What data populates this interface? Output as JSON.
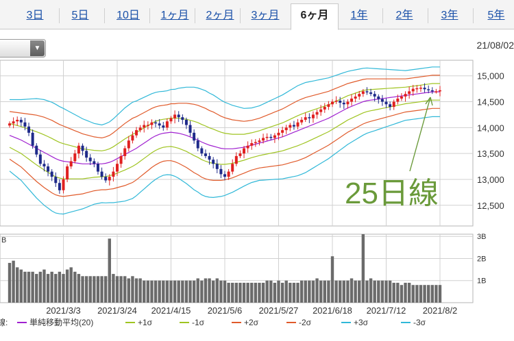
{
  "tabs": [
    {
      "label": "3日",
      "active": false
    },
    {
      "label": "5日",
      "active": false
    },
    {
      "label": "10日",
      "active": false
    },
    {
      "label": "1ヶ月",
      "active": false
    },
    {
      "label": "2ヶ月",
      "active": false
    },
    {
      "label": "3ヶ月",
      "active": false
    },
    {
      "label": "6ヶ月",
      "active": true
    },
    {
      "label": "1年",
      "active": false
    },
    {
      "label": "2年",
      "active": false
    },
    {
      "label": "3年",
      "active": false
    },
    {
      "label": "5年",
      "active": false
    }
  ],
  "header": {
    "date": "21/08/02"
  },
  "annotation": {
    "text": "25日線",
    "color": "#6a9a3a"
  },
  "chart_data": {
    "type": "candlestick",
    "price_axis": {
      "ticks": [
        15000,
        14500,
        14000,
        13500,
        13000,
        12500
      ],
      "tick_labels": [
        "15,000",
        "14,500",
        "14,000",
        "13,500",
        "13,000",
        "12,500"
      ],
      "range": [
        12100,
        15300
      ]
    },
    "volume_axis": {
      "ticks": [
        3,
        2,
        1
      ],
      "tick_labels": [
        "3B",
        "2B",
        "1B"
      ],
      "range": [
        0,
        3.1
      ],
      "unit_label": "B"
    },
    "x_tick_labels": [
      "2021/3/3",
      "2021/3/24",
      "2021/4/15",
      "2021/5/6",
      "2021/5/27",
      "2021/6/18",
      "2021/7/12",
      "2021/8/2"
    ],
    "x_tick_index": [
      14,
      28,
      42,
      56,
      70,
      84,
      98,
      112
    ],
    "colors": {
      "up": "#e02020",
      "down": "#1e2a8a",
      "ma": "#a020d0",
      "s1": "#9fc420",
      "s2": "#e05a2a",
      "s3": "#30b8d8",
      "grid": "#d0d0d0"
    },
    "close": [
      14080,
      14120,
      14150,
      14100,
      14020,
      13900,
      13650,
      13480,
      13300,
      13250,
      13150,
      13050,
      12930,
      12790,
      13000,
      13250,
      13350,
      13500,
      13650,
      13550,
      13420,
      13350,
      13300,
      13150,
      13050,
      12980,
      13050,
      13150,
      13300,
      13450,
      13600,
      13750,
      13850,
      13950,
      14000,
      14050,
      14050,
      14100,
      14080,
      14040,
      14000,
      14120,
      14180,
      14250,
      14200,
      14150,
      14050,
      13900,
      13750,
      13600,
      13500,
      13450,
      13380,
      13300,
      13200,
      13100,
      13050,
      13150,
      13300,
      13450,
      13500,
      13600,
      13650,
      13700,
      13720,
      13750,
      13800,
      13820,
      13800,
      13850,
      13900,
      13950,
      14000,
      14050,
      14020,
      14100,
      14150,
      14200,
      14180,
      14250,
      14300,
      14350,
      14400,
      14450,
      14500,
      14520,
      14480,
      14450,
      14500,
      14560,
      14600,
      14650,
      14700,
      14680,
      14650,
      14600,
      14550,
      14500,
      14450,
      14400,
      14500,
      14560,
      14600,
      14650,
      14700,
      14750,
      14760,
      14770,
      14740,
      14720,
      14700,
      14700,
      14720
    ],
    "ma25": [
      13850,
      13820,
      13790,
      13760,
      13720,
      13680,
      13640,
      13600,
      13560,
      13520,
      13480,
      13440,
      13400,
      13370,
      13350,
      13340,
      13330,
      13320,
      13310,
      13300,
      13300,
      13300,
      13300,
      13300,
      13300,
      13310,
      13330,
      13360,
      13400,
      13440,
      13480,
      13520,
      13560,
      13600,
      13650,
      13700,
      13750,
      13800,
      13840,
      13870,
      13890,
      13900,
      13910,
      13900,
      13890,
      13870,
      13850,
      13820,
      13790,
      13760,
      13720,
      13690,
      13660,
      13640,
      13620,
      13600,
      13590,
      13590,
      13590,
      13600,
      13610,
      13620,
      13640,
      13660,
      13680,
      13700,
      13720,
      13740,
      13760,
      13780,
      13800,
      13820,
      13850,
      13880,
      13910,
      13940,
      13970,
      14000,
      14030,
      14060,
      14090,
      14120,
      14150,
      14180,
      14220,
      14260,
      14300,
      14340,
      14380,
      14410,
      14440,
      14470,
      14500,
      14520,
      14530,
      14540,
      14550,
      14560,
      14570,
      14580,
      14590,
      14600,
      14610,
      14620,
      14630,
      14640,
      14650,
      14660,
      14670,
      14680,
      14690,
      14690,
      14690
    ],
    "sigma": [
      230,
      240,
      250,
      260,
      275,
      290,
      305,
      320,
      330,
      340,
      345,
      350,
      350,
      345,
      340,
      330,
      320,
      310,
      300,
      290,
      280,
      270,
      260,
      255,
      250,
      255,
      260,
      270,
      280,
      290,
      300,
      305,
      310,
      305,
      300,
      295,
      290,
      285,
      280,
      275,
      270,
      270,
      275,
      280,
      290,
      300,
      310,
      320,
      330,
      335,
      340,
      340,
      335,
      330,
      320,
      310,
      300,
      290,
      280,
      270,
      260,
      250,
      245,
      240,
      240,
      240,
      245,
      250,
      255,
      260,
      265,
      270,
      275,
      280,
      285,
      290,
      290,
      290,
      285,
      280,
      275,
      270,
      265,
      260,
      255,
      250,
      245,
      240,
      235,
      230,
      225,
      220,
      215,
      210,
      205,
      200,
      195,
      190,
      185,
      180,
      175,
      170,
      165,
      160,
      160,
      160,
      160,
      160,
      160,
      160,
      160,
      160,
      160
    ],
    "volume": [
      1.8,
      1.9,
      1.6,
      1.5,
      1.4,
      1.4,
      1.4,
      1.3,
      1.4,
      1.5,
      1.3,
      1.4,
      1.3,
      1.4,
      1.3,
      1.5,
      1.6,
      1.4,
      1.3,
      1.2,
      1.2,
      1.2,
      1.2,
      1.2,
      1.2,
      1.2,
      2.9,
      1.3,
      1.2,
      1.2,
      1.2,
      1.1,
      1.2,
      1.1,
      1.1,
      1.0,
      1.0,
      1.0,
      1.0,
      1.0,
      1.0,
      1.0,
      1.0,
      1.0,
      1.0,
      1.0,
      1.0,
      1.0,
      1.0,
      1.1,
      1.0,
      1.1,
      1.1,
      1.0,
      1.1,
      1.0,
      1.0,
      0.9,
      0.9,
      0.9,
      0.9,
      0.9,
      0.9,
      0.9,
      0.9,
      0.9,
      0.9,
      1.0,
      1.0,
      0.9,
      1.0,
      0.9,
      1.0,
      0.9,
      0.9,
      0.9,
      1.0,
      1.0,
      1.0,
      1.0,
      1.1,
      1.0,
      1.0,
      1.0,
      2.1,
      1.0,
      1.0,
      1.0,
      1.0,
      1.1,
      1.0,
      1.0,
      3.1,
      1.0,
      1.1,
      1.0,
      1.0,
      1.0,
      1.0,
      1.0,
      0.9,
      0.9,
      0.8,
      0.9,
      0.9,
      0.8,
      0.8,
      0.8,
      0.8,
      0.8,
      0.8,
      0.8,
      0.8
    ],
    "legend": [
      {
        "label": "単純移動平均(20)",
        "color": "#a020d0"
      },
      {
        "label": "+1σ",
        "color": "#9fc420"
      },
      {
        "label": "-1σ",
        "color": "#9fc420"
      },
      {
        "label": "+2σ",
        "color": "#e05a2a"
      },
      {
        "label": "-2σ",
        "color": "#e05a2a"
      },
      {
        "label": "+3σ",
        "color": "#30b8d8"
      },
      {
        "label": "-3σ",
        "color": "#30b8d8"
      }
    ],
    "legend_prefix": "線"
  }
}
